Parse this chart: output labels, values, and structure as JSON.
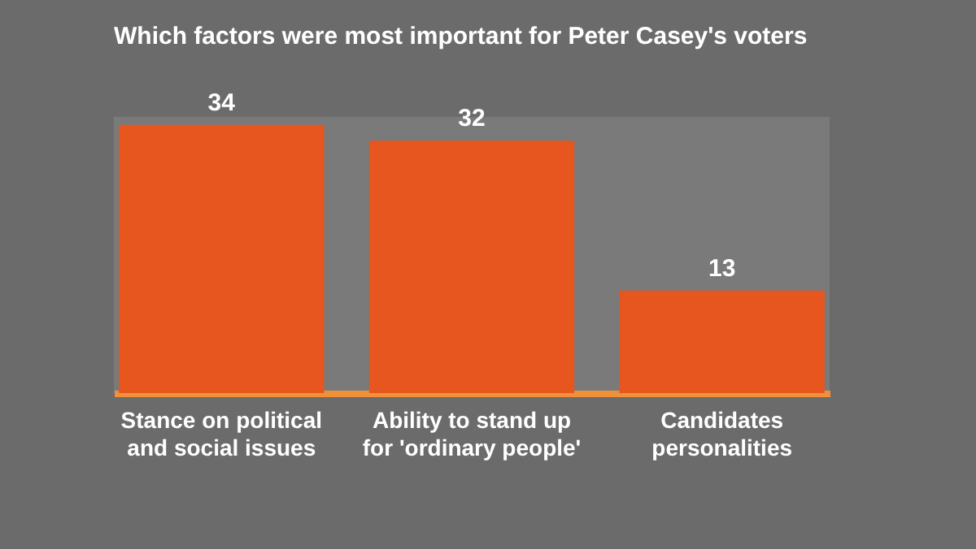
{
  "chart_data": {
    "type": "bar",
    "title": "Which factors were most important for Peter Casey's voters",
    "categories": [
      "Stance on political and social issues",
      "Ability to stand up for 'ordinary people'",
      "Candidates personalities"
    ],
    "values": [
      34,
      32,
      13
    ],
    "color": "#e8561f",
    "data_labels": true,
    "tick_labels": "x"
  }
}
